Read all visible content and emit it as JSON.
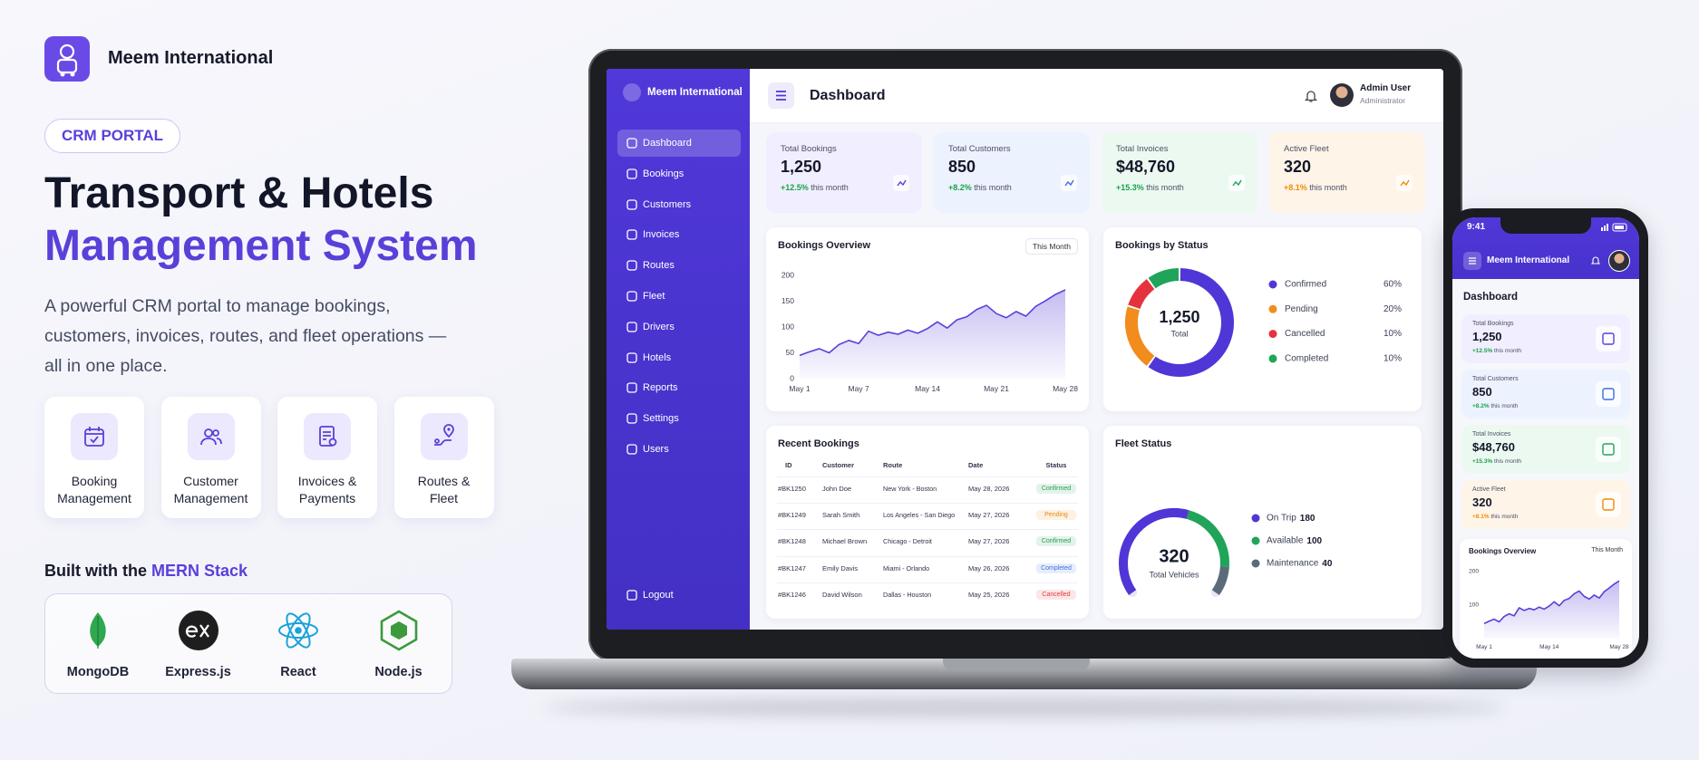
{
  "brand": {
    "name": "Meem International"
  },
  "hero": {
    "badge": "CRM PORTAL",
    "title_line1": "Transport & Hotels",
    "title_line2": "Management System",
    "description": "A powerful CRM portal to manage bookings, customers, invoices, routes, and fleet operations — all in one place."
  },
  "features": [
    "Booking Management",
    "Customer Management",
    "Invoices & Payments",
    "Routes & Fleet"
  ],
  "stack": {
    "prefix": "Built with the",
    "highlight": "MERN Stack",
    "items": [
      "MongoDB",
      "Express.js",
      "React",
      "Node.js"
    ]
  },
  "dashboard": {
    "brand": "Meem International",
    "nav": [
      "Dashboard",
      "Bookings",
      "Customers",
      "Invoices",
      "Routes",
      "Fleet",
      "Drivers",
      "Hotels",
      "Reports",
      "Settings",
      "Users"
    ],
    "logout": "Logout",
    "title": "Dashboard",
    "user_name": "Admin User",
    "user_role": "Administrator",
    "stats": [
      {
        "label": "Total Bookings",
        "value": "1,250",
        "change": "+12.5%",
        "period": "this month",
        "change_color": "#17a34a"
      },
      {
        "label": "Total Customers",
        "value": "850",
        "change": "+8.2%",
        "period": "this month",
        "change_color": "#17a34a"
      },
      {
        "label": "Total Invoices",
        "value": "$48,760",
        "change": "+15.3%",
        "period": "this month",
        "change_color": "#17a34a"
      },
      {
        "label": "Active Fleet",
        "value": "320",
        "change": "+8.1%",
        "period": "this month",
        "change_color": "#f08c00"
      }
    ],
    "bookings_overview": {
      "type": "line",
      "title": "Bookings Overview",
      "filter": "This Month",
      "x": [
        1,
        2,
        3,
        4,
        5,
        6,
        7,
        8,
        9,
        10,
        11,
        12,
        13,
        14,
        15,
        16,
        17,
        18,
        19,
        20,
        21,
        22,
        23,
        24,
        25,
        26,
        27,
        28
      ],
      "values": [
        45,
        52,
        58,
        50,
        66,
        74,
        68,
        92,
        84,
        90,
        86,
        94,
        88,
        97,
        110,
        98,
        114,
        120,
        134,
        142,
        126,
        118,
        130,
        121,
        140,
        151,
        163,
        172
      ],
      "xlim": [
        1,
        28
      ],
      "xticks": [
        {
          "value": 1,
          "label": "May 1"
        },
        {
          "value": 7,
          "label": "May 7"
        },
        {
          "value": 14,
          "label": "May 14"
        },
        {
          "value": 21,
          "label": "May 21"
        },
        {
          "value": 28,
          "label": "May 28"
        }
      ],
      "ylim": [
        0,
        200
      ],
      "yticks": [
        0,
        50,
        100,
        150,
        200
      ],
      "color": "#5b3fd9"
    },
    "bookings_by_status": {
      "type": "pie",
      "title": "Bookings by Status",
      "center_value": "1,250",
      "center_label": "Total",
      "categories": [
        "Confirmed",
        "Pending",
        "Cancelled",
        "Completed"
      ],
      "values": [
        60,
        20,
        10,
        10
      ],
      "value_labels": [
        "60%",
        "20%",
        "10%",
        "10%"
      ],
      "colors": [
        "#4f36d6",
        "#f28c1c",
        "#e5333d",
        "#1fa45a"
      ]
    },
    "recent_bookings": {
      "title": "Recent Bookings",
      "columns": [
        "ID",
        "Customer",
        "Route",
        "Date",
        "Status"
      ],
      "rows": [
        [
          "#BK1250",
          "John Doe",
          "New York - Boston",
          "May 28, 2026",
          "Confirmed"
        ],
        [
          "#BK1249",
          "Sarah Smith",
          "Los Angeles - San Diego",
          "May 27, 2026",
          "Pending"
        ],
        [
          "#BK1248",
          "Michael Brown",
          "Chicago - Detroit",
          "May 27, 2026",
          "Confirmed"
        ],
        [
          "#BK1247",
          "Emily Davis",
          "Miami - Orlando",
          "May 26, 2026",
          "Completed"
        ],
        [
          "#BK1246",
          "David Wilson",
          "Dallas - Houston",
          "May 25, 2026",
          "Cancelled"
        ]
      ],
      "status_colors": [
        "#1e9e50",
        "#e98a10",
        "#1e9e50",
        "#3b6fe0",
        "#e03c3c"
      ]
    },
    "fleet_status": {
      "type": "pie",
      "title": "Fleet Status",
      "total": "320",
      "total_label": "Total Vehicles",
      "categories": [
        "On Trip",
        "Available",
        "Maintenance"
      ],
      "values": [
        180,
        100,
        40
      ],
      "colors": [
        "#4f36d6",
        "#1fa45a",
        "#5b6b7a"
      ]
    }
  },
  "phone": {
    "time": "9:41",
    "yticks": [
      100,
      200
    ],
    "xticks": [
      {
        "value": 1,
        "label": "May 1"
      },
      {
        "value": 14,
        "label": "May 14"
      },
      {
        "value": 28,
        "label": "May 28"
      }
    ]
  }
}
